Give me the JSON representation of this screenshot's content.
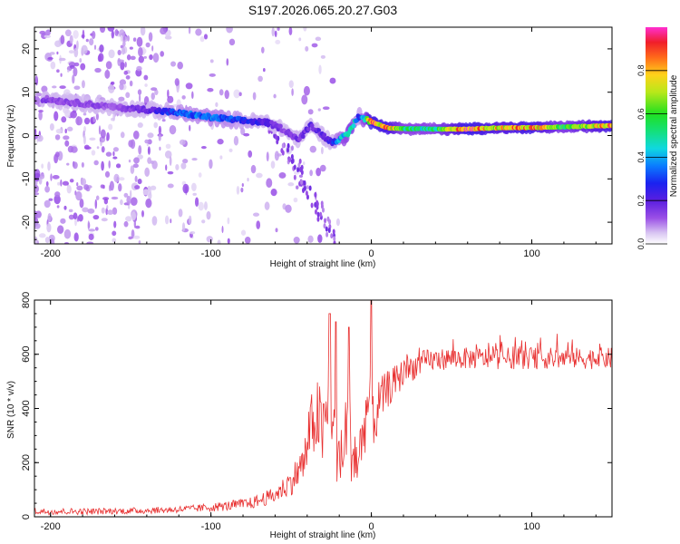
{
  "title": "S197.2026.065.20.27.G03",
  "colors": {
    "snr_line": "#e83030",
    "axis": "#000000",
    "colormap": [
      "#ffffff",
      "#e6d8f6",
      "#c9aaf0",
      "#8a3fe6",
      "#3a18d8",
      "#1a6cff",
      "#10d6e8",
      "#1ee36a",
      "#c8e81a",
      "#ff8a1a",
      "#f0202a",
      "#ff3fd0"
    ]
  },
  "chart_data": [
    {
      "type": "heatmap",
      "name": "spectrogram",
      "xlabel": "Height of straight line (km)",
      "ylabel": "Frequency (Hz)",
      "xlim": [
        -210,
        150
      ],
      "ylim": [
        -25,
        25
      ],
      "xticks": [
        -200,
        -100,
        0,
        100
      ],
      "yticks": [
        -20,
        -10,
        0,
        10,
        20
      ],
      "colorbar": {
        "label": "Normalized spectral amplitude",
        "range": [
          0.0,
          1.0
        ],
        "ticks": [
          0.0,
          0.2,
          0.4,
          0.6,
          0.8
        ]
      },
      "ridge": {
        "x": [
          -205,
          -190,
          -175,
          -160,
          -140,
          -120,
          -100,
          -80,
          -65,
          -55,
          -45,
          -38,
          -30,
          -25,
          -20,
          -15,
          -12,
          -8,
          -4,
          0,
          5,
          10,
          20,
          40,
          60,
          80,
          100,
          120,
          150
        ],
        "y": [
          8.5,
          7.8,
          7.2,
          6.5,
          6.0,
          5.2,
          4.2,
          3.4,
          3.0,
          1.5,
          -1.0,
          2.5,
          0.0,
          -1.5,
          -0.8,
          0.0,
          2.0,
          4.5,
          3.8,
          3.2,
          2.5,
          1.8,
          1.6,
          1.5,
          1.5,
          1.8,
          1.8,
          2.0,
          2.3
        ],
        "amplitude": [
          0.15,
          0.14,
          0.15,
          0.12,
          0.2,
          0.33,
          0.38,
          0.3,
          0.22,
          0.15,
          0.18,
          0.2,
          0.2,
          0.25,
          0.4,
          0.55,
          0.6,
          0.25,
          0.55,
          0.95,
          0.85,
          0.9,
          0.55,
          0.55,
          0.95,
          0.8,
          0.9,
          0.6,
          0.9
        ]
      }
    },
    {
      "type": "line",
      "name": "snr",
      "xlabel": "Height of straight line (km)",
      "ylabel": "SNR (10 * v/v)",
      "xlim": [
        -210,
        150
      ],
      "ylim": [
        0,
        800
      ],
      "xticks": [
        -200,
        -100,
        0,
        100
      ],
      "yticks": [
        0,
        200,
        400,
        600,
        800
      ],
      "series": [
        {
          "name": "SNR",
          "x": [
            -210,
            -190,
            -170,
            -150,
            -130,
            -110,
            -90,
            -75,
            -60,
            -50,
            -42,
            -38,
            -34,
            -30,
            -28,
            -25,
            -22,
            -18,
            -15,
            -12,
            -8,
            -4,
            -2,
            0,
            2,
            5,
            10,
            15,
            20,
            25,
            30,
            35,
            40,
            50,
            60,
            70,
            80,
            90,
            100,
            110,
            120,
            130,
            140,
            150
          ],
          "mean": [
            20,
            20,
            20,
            22,
            25,
            30,
            40,
            50,
            80,
            130,
            200,
            320,
            380,
            300,
            380,
            420,
            250,
            200,
            380,
            250,
            200,
            360,
            420,
            480,
            350,
            420,
            470,
            500,
            530,
            550,
            565,
            575,
            580,
            585,
            585,
            585,
            585,
            585,
            585,
            585,
            585,
            585,
            585,
            585
          ],
          "spread": [
            12,
            12,
            12,
            12,
            12,
            14,
            18,
            22,
            30,
            50,
            80,
            120,
            150,
            140,
            150,
            150,
            130,
            120,
            150,
            140,
            120,
            130,
            120,
            130,
            120,
            90,
            70,
            60,
            55,
            50,
            45,
            45,
            40,
            40,
            40,
            40,
            40,
            40,
            40,
            40,
            40,
            40,
            40,
            40
          ],
          "peaks": [
            {
              "x": -26,
              "y": 750
            },
            {
              "x": -22,
              "y": 720
            },
            {
              "x": -14,
              "y": 700
            },
            {
              "x": 0,
              "y": 800
            }
          ]
        }
      ]
    }
  ]
}
